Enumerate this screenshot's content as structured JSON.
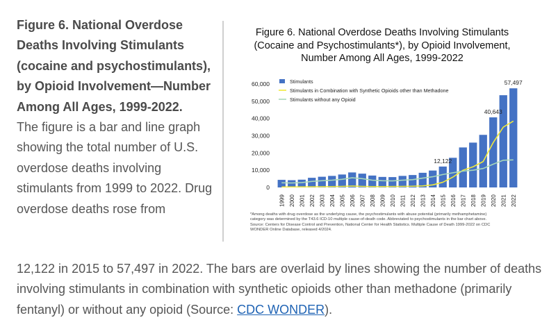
{
  "left_text": {
    "heading": "Figure 6. National Overdose Deaths Involving Stimulants (cocaine and psychostimulants), by Opioid Involvement—Number Among All Ages, 1999-2022.",
    "description_part1": "The figure is a bar and line graph showing the total number of U.S. overdose deaths involving stimulants from 1999 to 2022. Drug overdose deaths rose from",
    "description_part2": "12,122 in 2015 to 57,497 in 2022. The bars are overlaid by lines showing the number of deaths involving stimulants in combination with synthetic opioids other than methadone (primarily fentanyl) or without any opioid (Source: ",
    "source_link": "CDC WONDER",
    "source_end": ")."
  },
  "chart_data": {
    "type": "bar",
    "title_line1": "Figure 6. National Overdose Deaths Involving Stimulants",
    "title_line2": "(Cocaine and Psychostimulants*), by Opioid Involvement,",
    "title_line3": "Number Among All Ages, 1999-2022",
    "categories": [
      "1999",
      "2000",
      "2001",
      "2002",
      "2003",
      "2004",
      "2005",
      "2006",
      "2007",
      "2008",
      "2009",
      "2010",
      "2011",
      "2012",
      "2013",
      "2014",
      "2015",
      "2016",
      "2017",
      "2018",
      "2019",
      "2020",
      "2021",
      "2022"
    ],
    "series": [
      {
        "name": "Stimulants",
        "kind": "bar",
        "color": "#4472c4",
        "values": [
          4400,
          4200,
          4500,
          5600,
          6200,
          6700,
          7500,
          8700,
          8000,
          6900,
          6100,
          6000,
          6700,
          7200,
          8500,
          9800,
          12122,
          17200,
          23200,
          26000,
          30500,
          40643,
          53500,
          57497
        ]
      },
      {
        "name": "Stimulants in Combination with Synthetic Opioids other than Methadone",
        "kind": "line",
        "color": "#f2ea3a",
        "values": [
          300,
          300,
          350,
          400,
          450,
          500,
          600,
          800,
          600,
          500,
          500,
          550,
          600,
          700,
          900,
          1500,
          3000,
          6000,
          10000,
          12000,
          15000,
          26000,
          35000,
          38500
        ]
      },
      {
        "name": "Stimulants without any Opioid",
        "kind": "line",
        "color": "#a8d8b9",
        "values": [
          2700,
          2600,
          2800,
          3500,
          3900,
          4200,
          4700,
          5600,
          5100,
          4200,
          3900,
          3800,
          4200,
          4500,
          5400,
          6200,
          7500,
          8500,
          9500,
          10000,
          11000,
          13500,
          15800,
          16000
        ]
      }
    ],
    "y_ticks": [
      "60,000",
      "50,000",
      "40,000",
      "30,000",
      "20,000",
      "10,000",
      "0"
    ],
    "ylim": [
      0,
      60000
    ],
    "data_labels": [
      {
        "category": "2015",
        "text": "12,122"
      },
      {
        "category": "2020",
        "text": "40,643"
      },
      {
        "category": "2022",
        "text": "57,497"
      }
    ],
    "legend_position": "top-left",
    "footnote_line1": "*Among deaths with drug overdose as the underlying cause, the psychostimulants with abuse potential (primarily methamphetamine)",
    "footnote_line2": "category was determined by the T43.6 ICD-10 multiple cause-of-death code. Abbreviated to psychostimulants in the bar chart above.",
    "footnote_line3": "Source: Centers for Disease Control and Prevention, National Center for Health Statistics. Multiple Cause of Death 1999-2022 on CDC",
    "footnote_line4": "WONDER Online Database, released 4/2024."
  }
}
